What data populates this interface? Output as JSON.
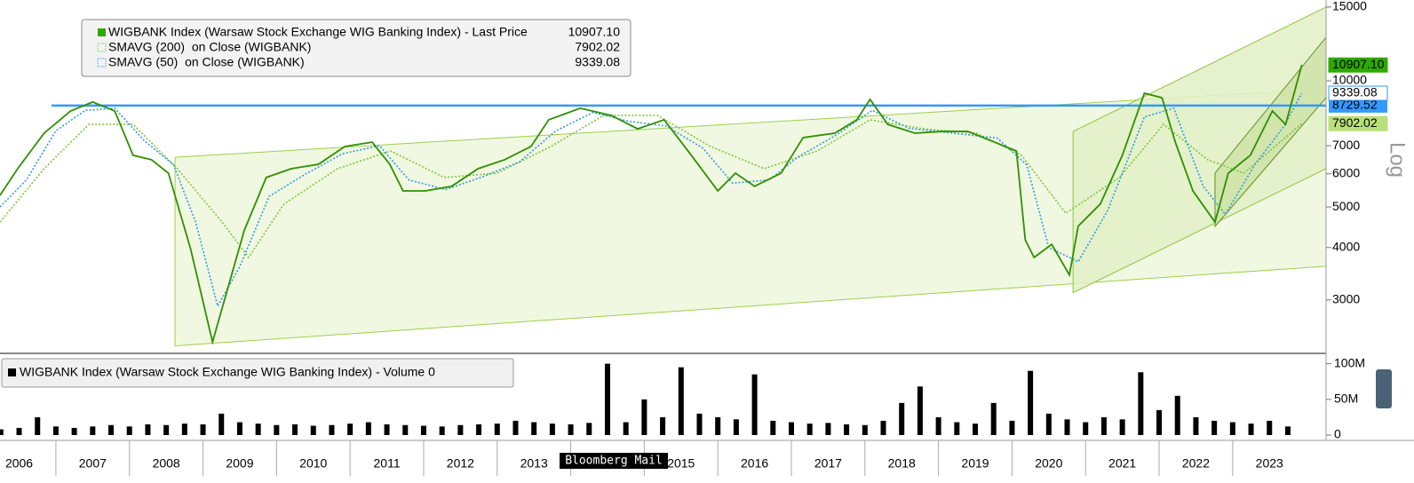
{
  "chart_data": {
    "type": "line",
    "log_scale": true,
    "axis_label": "Log",
    "xlim": [
      2006.24,
      2024.27
    ],
    "xticks": [
      2006,
      2007,
      2008,
      2009,
      2010,
      2011,
      2012,
      2013,
      2014,
      2015,
      2016,
      2017,
      2018,
      2019,
      2020,
      2021,
      2022,
      2023
    ],
    "ylim": [
      2247,
      15590
    ],
    "yticks": [
      3000,
      4000,
      5000,
      6000,
      7000,
      10000,
      15000
    ],
    "series": [
      {
        "name": "WIGBANK Index (Warsaw Stock Exchange WIG Banking Index) - Last Price",
        "color": "#2f8f00",
        "style": "solid",
        "last": {
          "value": 10907.1,
          "label": "10907.10"
        },
        "label_fill": "#2fa800",
        "label_text": "#000",
        "x": [
          2006.24,
          2006.48,
          2006.84,
          2007.2,
          2007.5,
          2007.8,
          2008.05,
          2008.3,
          2008.53,
          2008.83,
          2009.13,
          2009.32,
          2009.56,
          2009.86,
          2010.2,
          2010.57,
          2010.93,
          2011.3,
          2011.54,
          2011.72,
          2012.02,
          2012.38,
          2012.74,
          2013.1,
          2013.46,
          2013.7,
          2014.13,
          2014.55,
          2014.91,
          2015.27,
          2015.64,
          2016.0,
          2016.24,
          2016.5,
          2016.86,
          2017.16,
          2017.59,
          2017.89,
          2018.07,
          2018.31,
          2018.68,
          2019.04,
          2019.4,
          2019.76,
          2020.06,
          2020.18,
          2020.3,
          2020.54,
          2020.78,
          2020.9,
          2021.2,
          2021.5,
          2021.8,
          2022.04,
          2022.22,
          2022.46,
          2022.76,
          2022.94,
          2023.24,
          2023.54,
          2023.72,
          2023.94
        ],
        "values": [
          5330,
          6170,
          7500,
          8470,
          8900,
          8470,
          6640,
          6480,
          6020,
          3980,
          2380,
          3120,
          4390,
          5880,
          6170,
          6320,
          6970,
          7140,
          6320,
          5460,
          5460,
          5600,
          6170,
          6480,
          6970,
          8070,
          8600,
          8270,
          7680,
          8070,
          6640,
          5460,
          6020,
          5600,
          6020,
          7320,
          7500,
          8070,
          9030,
          7870,
          7500,
          7570,
          7570,
          7140,
          6800,
          4170,
          3790,
          4070,
          3440,
          4500,
          5080,
          6640,
          9340,
          9110,
          7140,
          5460,
          4600,
          6020,
          6640,
          8470,
          7870,
          10907.1
        ]
      },
      {
        "name": "SMAVG (200)  on Close (WIGBANK)",
        "color": "#7cc63a",
        "style": "dotted",
        "last": {
          "value": 7902.02,
          "label": "7902.02"
        },
        "label_fill": "#b9e07a",
        "label_text": "#000",
        "x": [
          2006.24,
          2006.84,
          2007.45,
          2008.05,
          2008.65,
          2009.26,
          2009.62,
          2010.1,
          2010.83,
          2011.55,
          2012.28,
          2013.0,
          2013.73,
          2014.45,
          2015.18,
          2015.9,
          2016.63,
          2017.35,
          2018.07,
          2018.8,
          2019.52,
          2020.13,
          2020.73,
          2021.46,
          2022.06,
          2022.66,
          2023.15,
          2023.94
        ],
        "values": [
          4600,
          6170,
          7870,
          7870,
          6170,
          4600,
          3790,
          5080,
          6170,
          6800,
          5880,
          6020,
          6970,
          8270,
          8270,
          6970,
          6170,
          6800,
          8070,
          7680,
          7500,
          6640,
          4830,
          5880,
          7870,
          6480,
          6020,
          7902.02
        ]
      },
      {
        "name": "SMAVG (50)  on Close (WIGBANK)",
        "color": "#2f9be0",
        "style": "dotted",
        "last": {
          "value": 9339.08,
          "label": "9339.08"
        },
        "label_fill": "#ffffff",
        "label_text": "#000",
        "x": [
          2006.24,
          2006.6,
          2007.0,
          2007.4,
          2007.8,
          2008.2,
          2008.6,
          2008.9,
          2009.2,
          2009.5,
          2009.9,
          2010.4,
          2010.9,
          2011.4,
          2011.8,
          2012.3,
          2012.8,
          2013.3,
          2013.8,
          2014.3,
          2014.8,
          2015.3,
          2015.8,
          2016.2,
          2016.7,
          2017.1,
          2017.6,
          2018.1,
          2018.6,
          2019.2,
          2019.8,
          2020.2,
          2020.5,
          2020.9,
          2021.3,
          2021.8,
          2022.2,
          2022.6,
          2022.9,
          2023.3,
          2023.7,
          2023.94
        ],
        "values": [
          5000,
          5800,
          7600,
          8500,
          8600,
          7200,
          6300,
          4600,
          2900,
          3600,
          5300,
          6000,
          6700,
          7000,
          5800,
          5500,
          5900,
          6400,
          7600,
          8400,
          8000,
          7800,
          6900,
          5700,
          5800,
          6600,
          7400,
          8500,
          7700,
          7500,
          7300,
          6300,
          4000,
          3700,
          4900,
          8200,
          8600,
          5600,
          4800,
          6300,
          7800,
          9339.08
        ]
      }
    ],
    "hlines": [
      {
        "value": 8729.52,
        "label": "8729.52",
        "color": "#3399ff"
      }
    ],
    "channels": [
      {
        "x": [
          2008.62,
          2024.27
        ],
        "upper": [
          6570,
          9570
        ],
        "lower": [
          2330,
          3610
        ],
        "color": "#9bd04a",
        "fill": "#eef7dc"
      },
      {
        "x": [
          2020.83,
          2024.27
        ],
        "upper": [
          7570,
          15000
        ],
        "lower": [
          3120,
          6170
        ],
        "color": "#8cc63f",
        "fill": "#e2f0c6"
      },
      {
        "x": [
          2022.76,
          2024.27
        ],
        "upper": [
          6020,
          12700
        ],
        "lower": [
          4490,
          9110
        ],
        "color": "#5f8f2a",
        "fill": "#cfe3a8"
      }
    ],
    "volume": {
      "title": "WIGBANK Index (Warsaw Stock Exchange WIG Banking Index) - Volume 0",
      "color": "#000000",
      "ylim": [
        0,
        112
      ],
      "yticks": [
        0,
        {
          "value": 50,
          "label": "50M"
        },
        {
          "value": 100,
          "label": "100M"
        }
      ],
      "x": [
        2006.25,
        2006.5,
        2006.75,
        2007,
        2007.25,
        2007.5,
        2007.75,
        2008,
        2008.25,
        2008.5,
        2008.75,
        2009,
        2009.25,
        2009.5,
        2009.75,
        2010,
        2010.25,
        2010.5,
        2010.75,
        2011,
        2011.25,
        2011.5,
        2011.75,
        2012,
        2012.25,
        2012.5,
        2012.75,
        2013,
        2013.25,
        2013.5,
        2013.75,
        2014,
        2014.25,
        2014.5,
        2014.75,
        2015,
        2015.25,
        2015.5,
        2015.75,
        2016,
        2016.25,
        2016.5,
        2016.75,
        2017,
        2017.25,
        2017.5,
        2017.75,
        2018,
        2018.25,
        2018.5,
        2018.75,
        2019,
        2019.25,
        2019.5,
        2019.75,
        2020,
        2020.25,
        2020.5,
        2020.75,
        2021,
        2021.25,
        2021.5,
        2021.75,
        2022,
        2022.25,
        2022.5,
        2022.75,
        2023,
        2023.25,
        2023.5,
        2023.75
      ],
      "values": [
        8,
        10,
        25,
        12,
        10,
        12,
        14,
        12,
        15,
        14,
        16,
        15,
        30,
        18,
        16,
        14,
        15,
        13,
        14,
        16,
        18,
        15,
        14,
        13,
        12,
        14,
        15,
        16,
        20,
        18,
        16,
        15,
        17,
        100,
        18,
        50,
        25,
        95,
        30,
        25,
        22,
        85,
        20,
        18,
        16,
        17,
        15,
        14,
        20,
        45,
        68,
        25,
        18,
        16,
        45,
        20,
        90,
        30,
        22,
        18,
        25,
        22,
        88,
        35,
        55,
        25,
        20,
        18,
        16,
        20,
        12
      ]
    },
    "overlay": "Bloomberg Mail"
  }
}
